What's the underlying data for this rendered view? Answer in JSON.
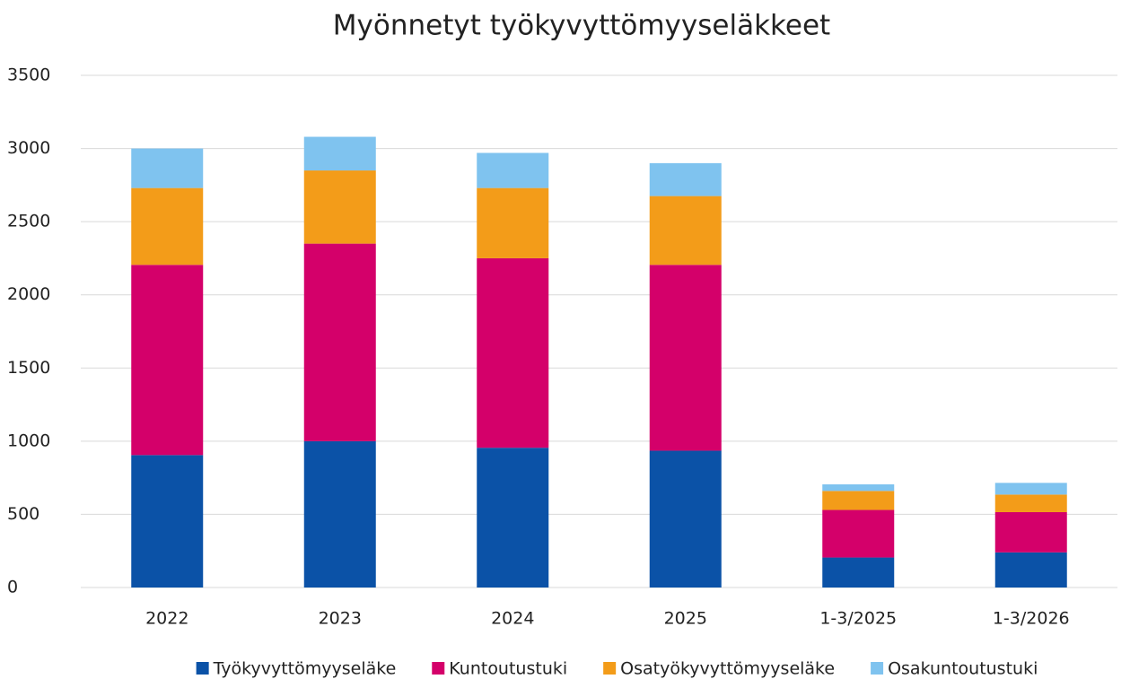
{
  "chart_data": {
    "type": "stacked_bar",
    "title": "Myönnetyt työkyvyttömyyseläkkeet",
    "categories": [
      "2022",
      "2023",
      "2024",
      "2025",
      "1-3/2025",
      "1-3/2026"
    ],
    "series": [
      {
        "name": "Työkyvyttömyyseläke",
        "color": "#0b52a7",
        "values": [
          905,
          1000,
          955,
          935,
          205,
          240
        ]
      },
      {
        "name": "Kuntoutustuki",
        "color": "#d4006a",
        "values": [
          1300,
          1350,
          1295,
          1270,
          325,
          275
        ]
      },
      {
        "name": "Osatyökyvyttömyyseläke",
        "color": "#f39c19",
        "values": [
          525,
          500,
          480,
          470,
          130,
          120
        ]
      },
      {
        "name": "Osakuntoutustuki",
        "color": "#7fc3ef",
        "values": [
          270,
          230,
          240,
          225,
          45,
          80
        ]
      }
    ],
    "ylim": [
      0,
      3500
    ],
    "yticks": [
      0,
      500,
      1000,
      1500,
      2000,
      2500,
      3000,
      3500
    ],
    "grid": true,
    "legend": "bottom"
  }
}
